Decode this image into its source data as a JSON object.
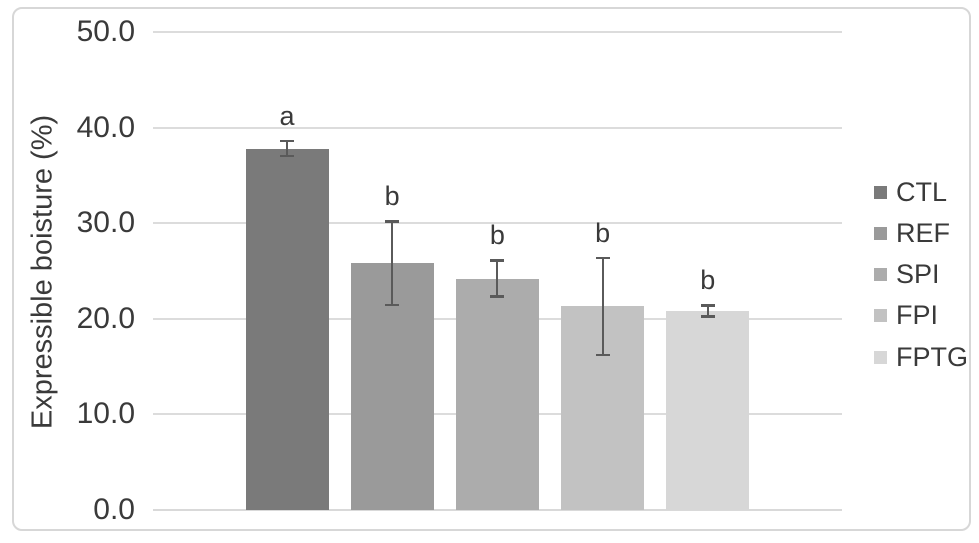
{
  "axis": {
    "y_title": "Expressible boisture (%)"
  },
  "chart_data": {
    "type": "bar",
    "title": "",
    "xlabel": "",
    "ylabel": "Expressible boisture (%)",
    "ylim": [
      0,
      50
    ],
    "y_tick_interval": 10,
    "y_tick_labels": [
      "50.0",
      "40.0",
      "30.0",
      "20.0",
      "10.0",
      "0.0"
    ],
    "grid": true,
    "legend_position": "right",
    "categories": [
      "CTL",
      "REF",
      "SPI",
      "FPI",
      "FPTG"
    ],
    "values": [
      37.8,
      25.8,
      24.2,
      21.3,
      20.8
    ],
    "error_bars": [
      0.8,
      4.4,
      1.9,
      5.1,
      0.6
    ],
    "significance_letters": [
      "a",
      "b",
      "b",
      "b",
      "b"
    ],
    "bar_colors": [
      "#7a7a7a",
      "#9a9a9a",
      "#acacac",
      "#c2c2c2",
      "#d7d7d7"
    ]
  },
  "legend": {
    "items": [
      {
        "label": "CTL",
        "color": "#7a7a7a"
      },
      {
        "label": "REF",
        "color": "#9a9a9a"
      },
      {
        "label": "SPI",
        "color": "#acacac"
      },
      {
        "label": "FPI",
        "color": "#c2c2c2"
      },
      {
        "label": "FPTG",
        "color": "#d7d7d7"
      }
    ]
  },
  "style": {
    "gridline_color": "#dcdcdc",
    "axisline_color": "#d9d9d9",
    "errorbar_color": "#5a5a5a",
    "text_color": "#3a3a3a",
    "frame_border_color": "#d7d7d7",
    "background": "#ffffff"
  }
}
